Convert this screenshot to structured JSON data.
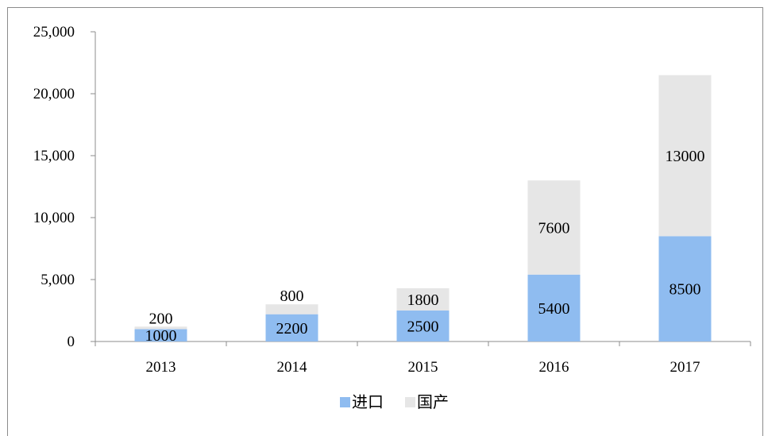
{
  "chart_data": {
    "type": "bar",
    "stacked": true,
    "categories": [
      "2013",
      "2014",
      "2015",
      "2016",
      "2017"
    ],
    "series": [
      {
        "name": "进口",
        "values": [
          1000,
          2200,
          2500,
          5400,
          8500
        ],
        "color": "#8fbcf0"
      },
      {
        "name": "国产",
        "values": [
          200,
          800,
          1800,
          7600,
          13000
        ],
        "color": "#e6e6e6"
      }
    ],
    "y_ticks": [
      "0",
      "5,000",
      "10,000",
      "15,000",
      "20,000",
      "25,000"
    ],
    "ylim": [
      0,
      25000
    ],
    "grid": false,
    "legend_position": "bottom"
  }
}
